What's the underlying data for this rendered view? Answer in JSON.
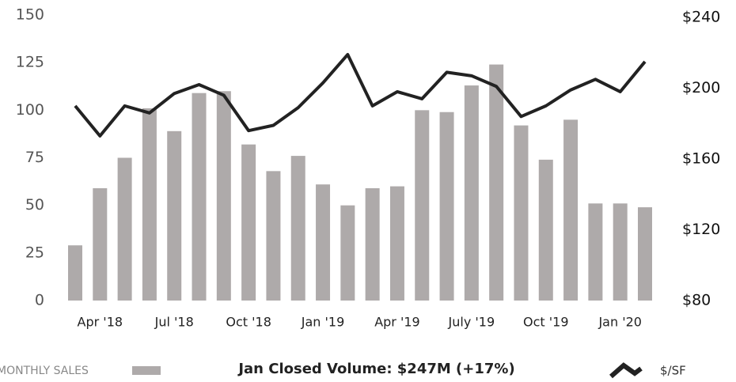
{
  "chart_data": {
    "type": "bar",
    "categories": [
      null,
      "Apr '18",
      null,
      null,
      "Jul '18",
      null,
      null,
      "Oct '18",
      null,
      null,
      "Jan '19",
      null,
      null,
      "Apr '19",
      null,
      null,
      "July '19",
      null,
      null,
      "Oct '19",
      null,
      null,
      "Jan '20",
      null
    ],
    "series": [
      {
        "name": "MONTHLY SALES",
        "color": "#aeaaaa",
        "type": "bar",
        "values": [
          29,
          59,
          75,
          101,
          89,
          109,
          110,
          82,
          68,
          76,
          61,
          50,
          59,
          60,
          100,
          99,
          113,
          124,
          92,
          74,
          95,
          51,
          51,
          49
        ]
      },
      {
        "name": "$/SF",
        "color": "#222222",
        "type": "line",
        "axis": "y2",
        "values": [
          190,
          173,
          190,
          186,
          197,
          202,
          196,
          176,
          179,
          189,
          203,
          219,
          190,
          198,
          194,
          209,
          207,
          201,
          184,
          190,
          199,
          205,
          198,
          215
        ]
      }
    ],
    "ylim": [
      0,
      150
    ],
    "yticks": [
      0,
      25,
      50,
      75,
      100,
      125,
      150
    ],
    "y2lim": [
      80,
      240
    ],
    "y2ticks": [
      {
        "value": 80,
        "label": "$80"
      },
      {
        "value": 120,
        "label": "$120"
      },
      {
        "value": 160,
        "label": "$160"
      },
      {
        "value": 200,
        "label": "$200"
      },
      {
        "value": 240,
        "label": "$240"
      }
    ],
    "annotation": "Jan Closed Volume:  $247M (+17%)",
    "grid": false
  }
}
